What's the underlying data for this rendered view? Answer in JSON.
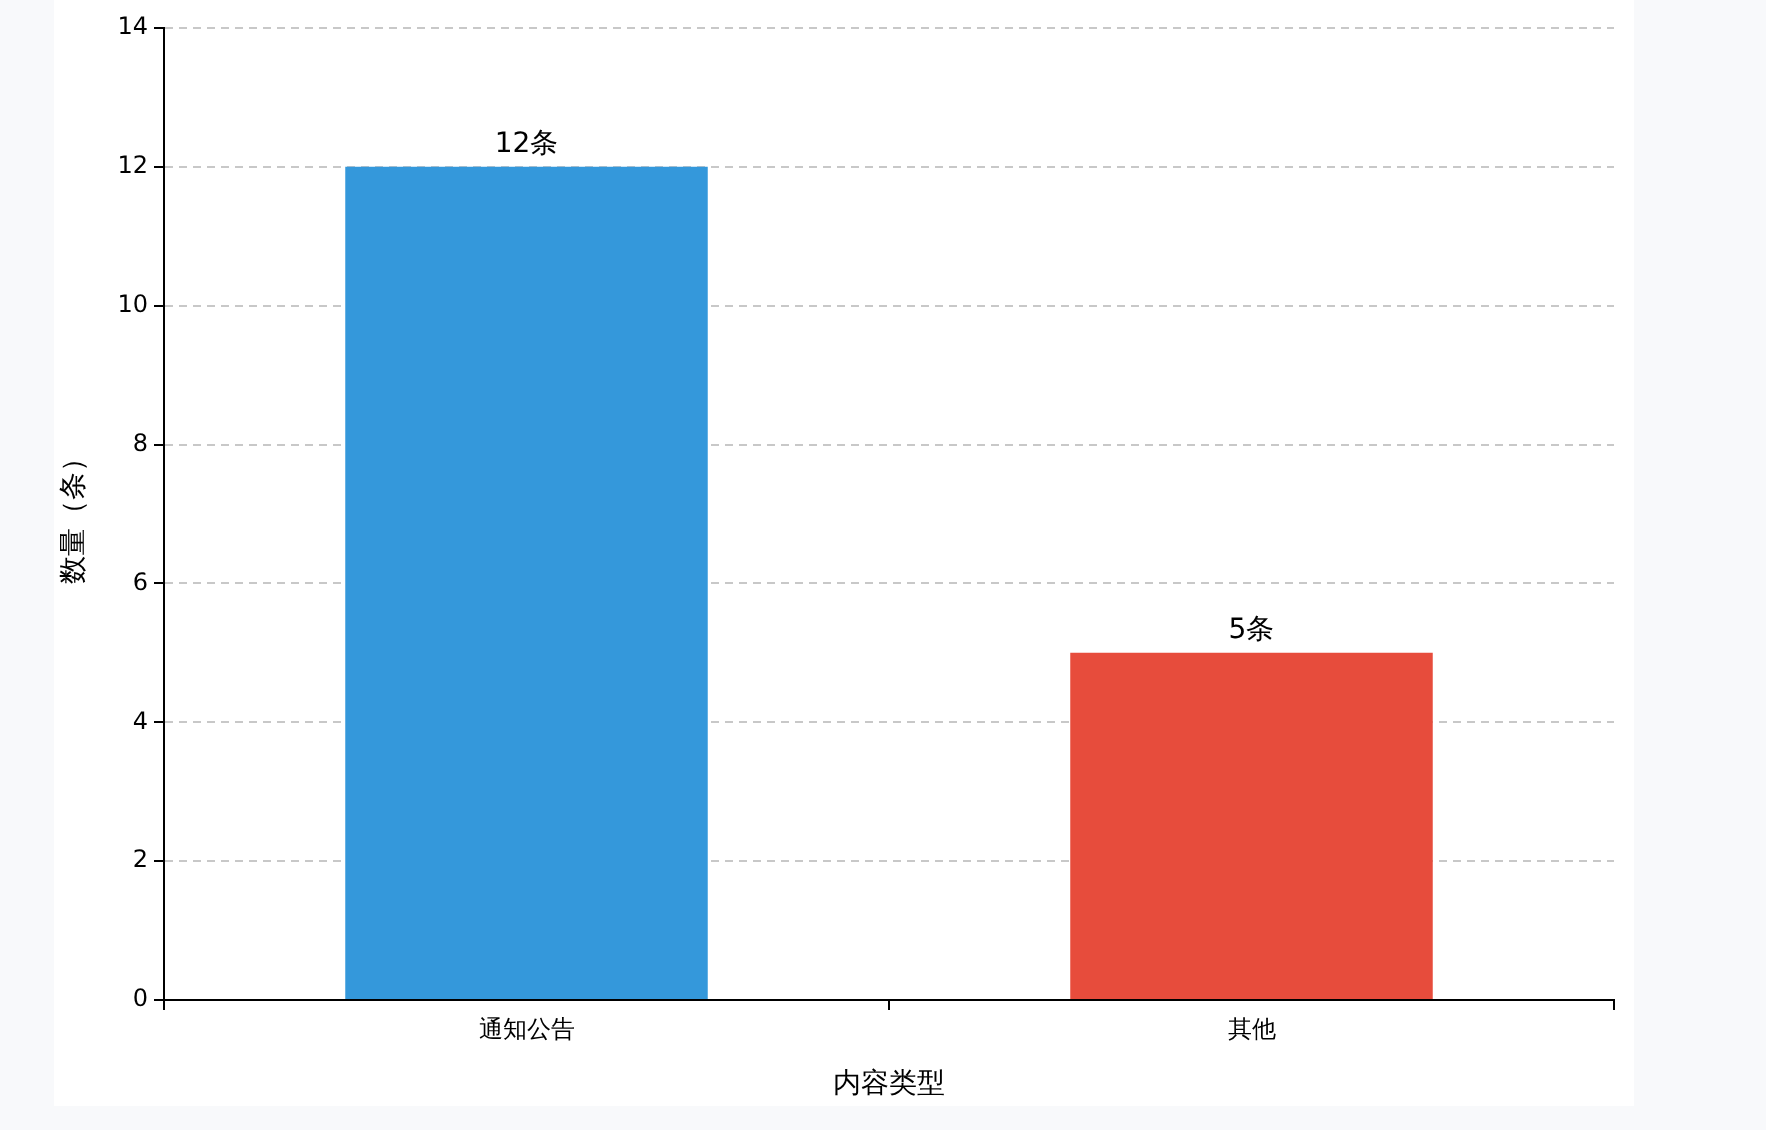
{
  "chart_data": {
    "type": "bar",
    "xlabel": "内容类型",
    "ylabel": "数量（条）",
    "categories": [
      "通知公告",
      "其他"
    ],
    "values": [
      12,
      5
    ],
    "colors": [
      "#3498db",
      "#e74c3c"
    ],
    "value_labels": [
      "12条",
      "5条"
    ],
    "ylim": [
      0,
      14
    ],
    "yticks": [
      0,
      2,
      4,
      6,
      8,
      10,
      12,
      14
    ],
    "grid": "y",
    "legend": false
  }
}
